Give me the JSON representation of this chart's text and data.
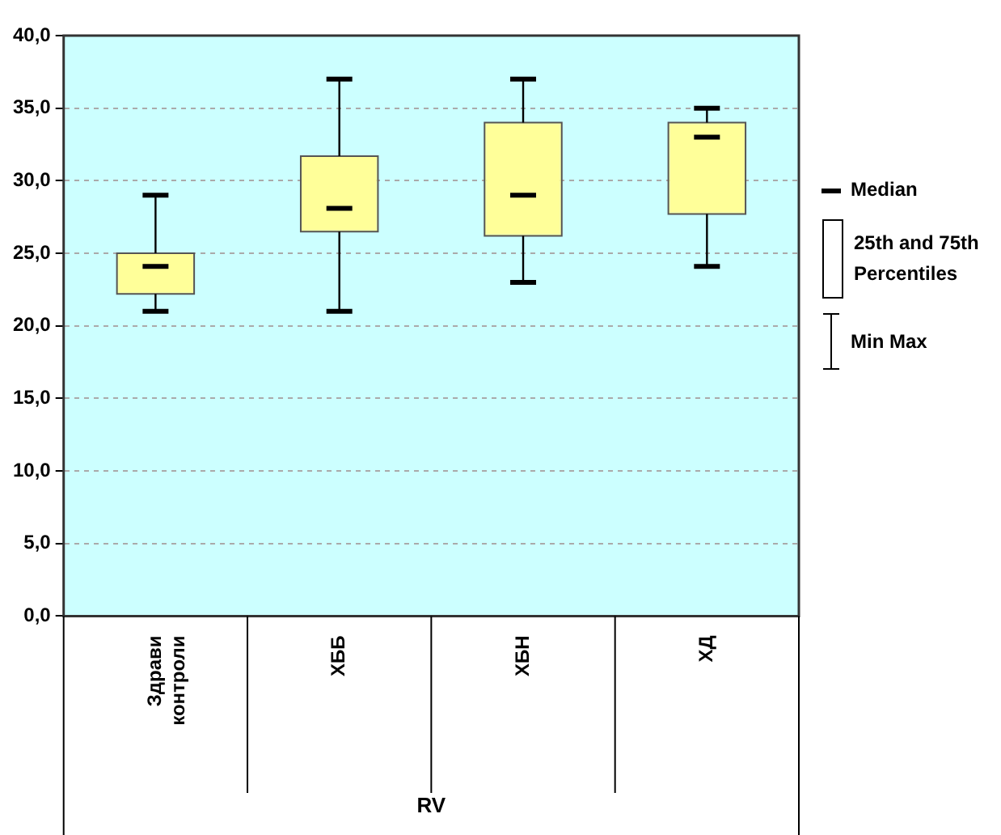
{
  "chart_data": {
    "type": "box",
    "xlabel": "RV",
    "categories": [
      "Здрави контроли",
      "ХББ",
      "ХБН",
      "ХД"
    ],
    "boxes": [
      {
        "low": 21.0,
        "q1": 22.2,
        "median": 24.1,
        "q3": 25.0,
        "high": 29.0
      },
      {
        "low": 21.0,
        "q1": 26.5,
        "median": 28.1,
        "q3": 31.7,
        "high": 37.0
      },
      {
        "low": 23.0,
        "q1": 26.2,
        "median": 29.0,
        "q3": 34.0,
        "high": 37.0
      },
      {
        "low": 24.1,
        "q1": 27.7,
        "median": 33.0,
        "q3": 34.0,
        "high": 35.0
      }
    ],
    "color": "#ffff99",
    "ylim": [
      0,
      40
    ],
    "yticks": [
      {
        "value": 0,
        "label": "0,0"
      },
      {
        "value": 5,
        "label": "5,0"
      },
      {
        "value": 10,
        "label": "10,0"
      },
      {
        "value": 15,
        "label": "15,0"
      },
      {
        "value": 20,
        "label": "20,0"
      },
      {
        "value": 25,
        "label": "25,0"
      },
      {
        "value": 30,
        "label": "30,0"
      },
      {
        "value": 35,
        "label": "35,0"
      },
      {
        "value": 40,
        "label": "40,0"
      }
    ],
    "grid": "y",
    "annotations": [
      "Median",
      "25th and 75th Percentiles",
      "Min Max"
    ]
  }
}
